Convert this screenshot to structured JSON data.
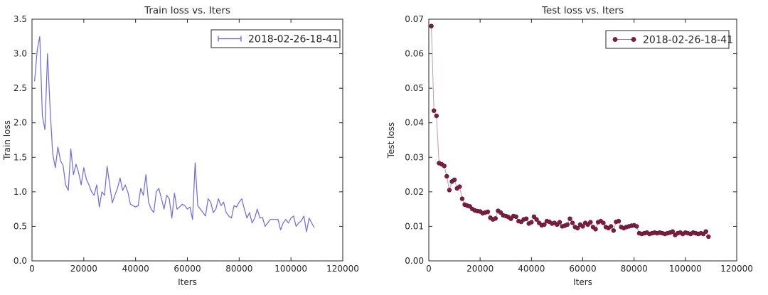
{
  "figure": {
    "background_color": "#ffffff",
    "axis_color": "#262626"
  },
  "chart_data": [
    {
      "type": "line",
      "title": "Train loss  vs. Iters",
      "xlabel": "Iters",
      "ylabel": "Train loss",
      "xlim": [
        0,
        120000
      ],
      "ylim": [
        0.0,
        3.5
      ],
      "xticks": [
        0,
        20000,
        40000,
        60000,
        80000,
        100000,
        120000
      ],
      "yticks": [
        0.0,
        0.5,
        1.0,
        1.5,
        2.0,
        2.5,
        3.0,
        3.5
      ],
      "ytick_decimals": 1,
      "grid": false,
      "legend": {
        "position": "upper right",
        "label": "2018-02-26-18-41",
        "sample_style": "errorbar-caps"
      },
      "x": [
        1000,
        2000,
        3000,
        4000,
        5000,
        6000,
        7000,
        8000,
        9000,
        10000,
        11000,
        12000,
        13000,
        14000,
        15000,
        16000,
        17000,
        18000,
        19000,
        20000,
        21000,
        22000,
        23000,
        24000,
        25000,
        26000,
        27000,
        28000,
        29000,
        30000,
        31000,
        32000,
        33000,
        34000,
        35000,
        36000,
        37000,
        38000,
        39000,
        40000,
        41000,
        42000,
        43000,
        44000,
        45000,
        46000,
        47000,
        48000,
        49000,
        50000,
        51000,
        52000,
        53000,
        54000,
        55000,
        56000,
        57000,
        58000,
        59000,
        60000,
        61000,
        62000,
        63000,
        64000,
        65000,
        66000,
        67000,
        68000,
        69000,
        70000,
        71000,
        72000,
        73000,
        74000,
        75000,
        76000,
        77000,
        78000,
        79000,
        80000,
        81000,
        82000,
        83000,
        84000,
        85000,
        86000,
        87000,
        88000,
        89000,
        90000,
        91000,
        92000,
        93000,
        94000,
        95000,
        96000,
        97000,
        98000,
        99000,
        100000,
        101000,
        102000,
        103000,
        104000,
        105000,
        106000,
        107000,
        108000,
        109000
      ],
      "series": [
        {
          "name": "2018-02-26-18-41",
          "color": "#5a5ae0",
          "line_width": 1.2,
          "line_opacity": 0.9,
          "marker": "none",
          "values": [
            2.6,
            3.05,
            3.25,
            2.1,
            1.9,
            3.0,
            2.2,
            1.55,
            1.35,
            1.65,
            1.45,
            1.38,
            1.1,
            1.02,
            1.62,
            1.25,
            1.4,
            1.28,
            1.1,
            1.35,
            1.18,
            1.1,
            1.0,
            0.95,
            1.1,
            0.78,
            1.0,
            0.95,
            1.37,
            1.1,
            0.84,
            0.95,
            1.05,
            1.2,
            1.02,
            1.1,
            1.0,
            0.82,
            0.8,
            0.78,
            0.8,
            1.05,
            0.95,
            1.25,
            0.85,
            0.75,
            0.7,
            1.0,
            1.05,
            0.9,
            0.75,
            0.95,
            0.9,
            0.62,
            0.98,
            0.75,
            0.78,
            0.82,
            0.8,
            0.75,
            0.78,
            0.6,
            1.42,
            0.8,
            0.75,
            0.7,
            0.65,
            0.9,
            0.85,
            0.7,
            0.75,
            0.9,
            0.8,
            0.85,
            0.7,
            0.65,
            0.62,
            0.8,
            0.78,
            0.85,
            0.9,
            0.75,
            0.62,
            0.7,
            0.55,
            0.62,
            0.75,
            0.62,
            0.63,
            0.5,
            0.55,
            0.6,
            0.6,
            0.6,
            0.6,
            0.45,
            0.55,
            0.6,
            0.55,
            0.62,
            0.65,
            0.5,
            0.55,
            0.58,
            0.65,
            0.42,
            0.62,
            0.55,
            0.48
          ]
        }
      ],
      "layout": {
        "plot": [
          45,
          27,
          482,
          367
        ],
        "legend_box": [
          297,
          42,
          181,
          25
        ]
      }
    },
    {
      "type": "line",
      "title": "Test loss  vs. Iters",
      "xlabel": "Iters",
      "ylabel": "Test loss",
      "xlim": [
        0,
        120000
      ],
      "ylim": [
        0.0,
        0.07
      ],
      "xticks": [
        0,
        20000,
        40000,
        60000,
        80000,
        100000,
        120000
      ],
      "yticks": [
        0.0,
        0.01,
        0.02,
        0.03,
        0.04,
        0.05,
        0.06,
        0.07
      ],
      "ytick_decimals": 2,
      "grid": false,
      "legend": {
        "position": "upper right",
        "label": "2018-02-26-18-41",
        "sample_style": "line-markers"
      },
      "x": [
        1000,
        2000,
        3000,
        4000,
        5000,
        6000,
        7000,
        8000,
        9000,
        10000,
        11000,
        12000,
        13000,
        14000,
        15000,
        16000,
        17000,
        18000,
        19000,
        20000,
        21000,
        22000,
        23000,
        24000,
        25000,
        26000,
        27000,
        28000,
        29000,
        30000,
        31000,
        32000,
        33000,
        34000,
        35000,
        36000,
        37000,
        38000,
        39000,
        40000,
        41000,
        42000,
        43000,
        44000,
        45000,
        46000,
        47000,
        48000,
        49000,
        50000,
        51000,
        52000,
        53000,
        54000,
        55000,
        56000,
        57000,
        58000,
        59000,
        60000,
        61000,
        62000,
        63000,
        64000,
        65000,
        66000,
        67000,
        68000,
        69000,
        70000,
        71000,
        72000,
        73000,
        74000,
        75000,
        76000,
        77000,
        78000,
        79000,
        80000,
        81000,
        82000,
        83000,
        84000,
        85000,
        86000,
        87000,
        88000,
        89000,
        90000,
        91000,
        92000,
        93000,
        94000,
        95000,
        96000,
        97000,
        98000,
        99000,
        100000,
        101000,
        102000,
        103000,
        104000,
        105000,
        106000,
        107000,
        108000,
        109000
      ],
      "series": [
        {
          "name": "2018-02-26-18-41",
          "color": "#7d1e41",
          "line_width": 1,
          "line_opacity": 0.45,
          "marker": "o",
          "marker_size": 2.9,
          "marker_color": "#7d1e41",
          "marker_edge_color": "#5a142e",
          "values": [
            0.068,
            0.0435,
            0.042,
            0.0283,
            0.028,
            0.0275,
            0.0245,
            0.0205,
            0.023,
            0.0235,
            0.021,
            0.0215,
            0.018,
            0.0163,
            0.016,
            0.0158,
            0.015,
            0.0146,
            0.0144,
            0.0143,
            0.0138,
            0.014,
            0.0142,
            0.0125,
            0.012,
            0.0123,
            0.0145,
            0.014,
            0.0132,
            0.013,
            0.0127,
            0.0122,
            0.013,
            0.0128,
            0.0115,
            0.0113,
            0.012,
            0.0122,
            0.0108,
            0.0112,
            0.0128,
            0.012,
            0.011,
            0.0103,
            0.0105,
            0.0115,
            0.0113,
            0.0108,
            0.011,
            0.0105,
            0.0112,
            0.01,
            0.0102,
            0.0105,
            0.0122,
            0.011,
            0.0098,
            0.0095,
            0.0105,
            0.01,
            0.011,
            0.0105,
            0.0112,
            0.0098,
            0.0092,
            0.0112,
            0.0115,
            0.011,
            0.0098,
            0.0095,
            0.01,
            0.0088,
            0.0113,
            0.0115,
            0.0098,
            0.0095,
            0.0098,
            0.01,
            0.0102,
            0.0103,
            0.01,
            0.008,
            0.0078,
            0.008,
            0.0082,
            0.0078,
            0.008,
            0.0082,
            0.008,
            0.0082,
            0.008,
            0.0078,
            0.008,
            0.0082,
            0.0085,
            0.0075,
            0.008,
            0.0082,
            0.0078,
            0.0082,
            0.008,
            0.0078,
            0.0082,
            0.008,
            0.0078,
            0.008,
            0.0078,
            0.0085,
            0.007
          ]
        }
      ],
      "layout": {
        "plot": [
          63,
          27,
          496,
          367
        ],
        "legend_box": [
          312,
          43,
          173,
          25
        ]
      }
    }
  ]
}
